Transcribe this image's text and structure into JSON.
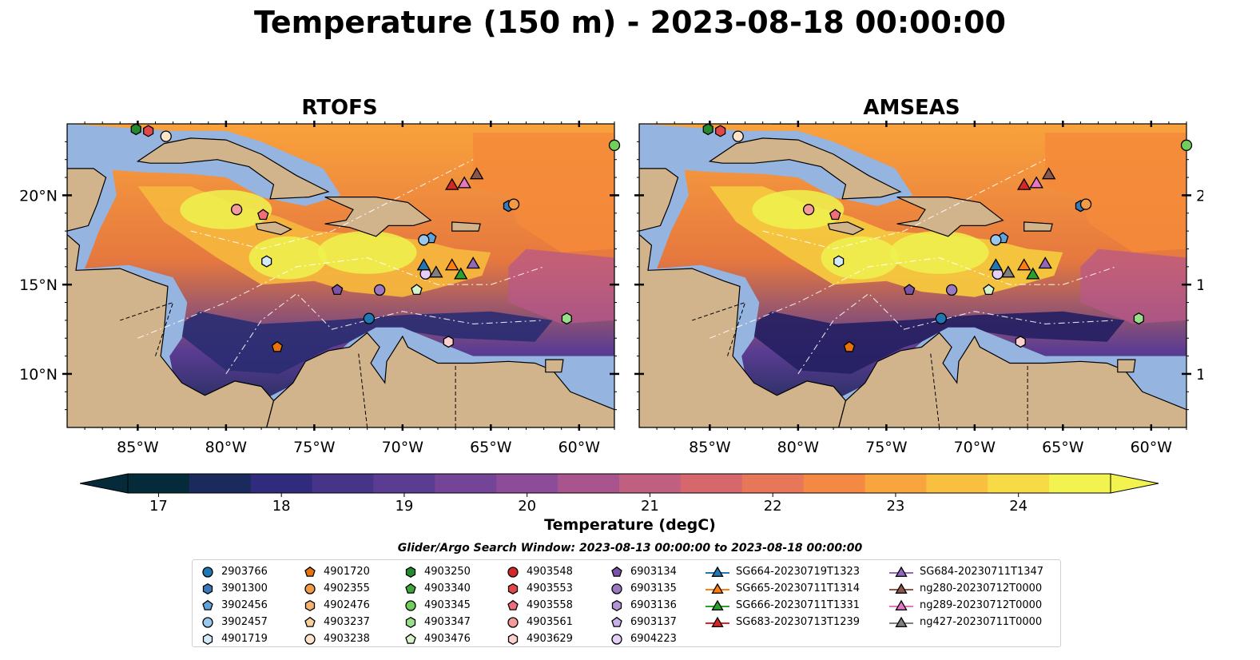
{
  "figure": {
    "title": "Temperature (150 m) - 2023-08-18 00:00:00"
  },
  "panels": [
    {
      "id": "rtofs",
      "title": "RTOFS"
    },
    {
      "id": "amseas",
      "title": "AMSEAS"
    }
  ],
  "map_axes": {
    "lon_ticks": [
      "85°W",
      "80°W",
      "75°W",
      "70°W",
      "65°W",
      "60°W"
    ],
    "lat_ticks": [
      "20°N",
      "15°N",
      "10°N"
    ],
    "lon_range": [
      -89,
      -58
    ],
    "lat_range": [
      7,
      24
    ]
  },
  "colorbar": {
    "label": "Temperature (degC)",
    "ticks": [
      "17",
      "18",
      "19",
      "20",
      "21",
      "22",
      "23",
      "24"
    ],
    "range": [
      16.75,
      24.75
    ],
    "levels": 16,
    "extend": "both",
    "colormap": "thermal",
    "stops": [
      "#052a3a",
      "#2d2a7a",
      "#553a92",
      "#83499a",
      "#b55a8a",
      "#de6c66",
      "#f78e3f",
      "#f9c43f",
      "#f3f34f"
    ]
  },
  "search_window": "Glider/Argo Search Window: 2023-08-13 00:00:00 to 2023-08-18 00:00:00",
  "legend": {
    "columns": [
      [
        {
          "label": "2903766",
          "marker": "circle",
          "color": "#1f77b4"
        },
        {
          "label": "3901300",
          "marker": "hexagon",
          "color": "#3a78b9"
        },
        {
          "label": "3902456",
          "marker": "pentagon",
          "color": "#5fa3db"
        },
        {
          "label": "3902457",
          "marker": "circle",
          "color": "#9ac8ec"
        },
        {
          "label": "4901719",
          "marker": "hexagon",
          "color": "#d3eaf8"
        }
      ],
      [
        {
          "label": "4901720",
          "marker": "pentagon",
          "color": "#e8720c"
        },
        {
          "label": "4902355",
          "marker": "circle",
          "color": "#f39a45"
        },
        {
          "label": "4902476",
          "marker": "hexagon",
          "color": "#f8b36e"
        },
        {
          "label": "4903237",
          "marker": "pentagon",
          "color": "#fbcf9c"
        },
        {
          "label": "4903238",
          "marker": "circle",
          "color": "#fde4c8"
        }
      ],
      [
        {
          "label": "4903250",
          "marker": "hexagon",
          "color": "#238b2d"
        },
        {
          "label": "4903340",
          "marker": "pentagon",
          "color": "#3fa83a"
        },
        {
          "label": "4903345",
          "marker": "circle",
          "color": "#6fcf5a"
        },
        {
          "label": "4903347",
          "marker": "hexagon",
          "color": "#98df8a"
        },
        {
          "label": "4903476",
          "marker": "pentagon",
          "color": "#d4f2cb"
        }
      ],
      [
        {
          "label": "4903548",
          "marker": "circle",
          "color": "#d62728"
        },
        {
          "label": "4903553",
          "marker": "hexagon",
          "color": "#e2484a"
        },
        {
          "label": "4903558",
          "marker": "pentagon",
          "color": "#ef6e7a"
        },
        {
          "label": "4903561",
          "marker": "circle",
          "color": "#f49a9a"
        },
        {
          "label": "4903629",
          "marker": "hexagon",
          "color": "#fbd0cd"
        }
      ],
      [
        {
          "label": "6903134",
          "marker": "pentagon",
          "color": "#7a52a8"
        },
        {
          "label": "6903135",
          "marker": "circle",
          "color": "#9a78c2"
        },
        {
          "label": "6903136",
          "marker": "hexagon",
          "color": "#b394d6"
        },
        {
          "label": "6903137",
          "marker": "pentagon",
          "color": "#c9b0ea"
        },
        {
          "label": "6904223",
          "marker": "circle",
          "color": "#e3cffa"
        }
      ],
      [
        {
          "label": "SG664-20230719T1323",
          "marker": "triangle",
          "color": "#1f77b4"
        },
        {
          "label": "SG665-20230711T1314",
          "marker": "triangle",
          "color": "#ff7f0e"
        },
        {
          "label": "SG666-20230711T1331",
          "marker": "triangle",
          "color": "#2ca02c"
        },
        {
          "label": "SG683-20230713T1239",
          "marker": "triangle",
          "color": "#d62728"
        }
      ],
      [
        {
          "label": "SG684-20230711T1347",
          "marker": "triangle",
          "color": "#9467bd"
        },
        {
          "label": "ng280-20230712T0000",
          "marker": "triangle",
          "color": "#8c564b"
        },
        {
          "label": "ng289-20230712T0000",
          "marker": "triangle",
          "color": "#e377c2"
        },
        {
          "label": "ng427-20230711T0000",
          "marker": "triangle",
          "color": "#7f7f7f"
        }
      ]
    ]
  },
  "observations": [
    {
      "id": "2903766",
      "lon": -71.9,
      "lat": 13.1
    },
    {
      "id": "3901300",
      "lon": -64.0,
      "lat": 19.4
    },
    {
      "id": "3902456",
      "lon": -68.4,
      "lat": 17.6
    },
    {
      "id": "3902457",
      "lon": -68.8,
      "lat": 17.5
    },
    {
      "id": "4901719",
      "lon": -77.7,
      "lat": 16.3
    },
    {
      "id": "4901720",
      "lon": -77.1,
      "lat": 11.5
    },
    {
      "id": "4902355",
      "lon": -63.7,
      "lat": 19.5
    },
    {
      "id": "4903238",
      "lon": -83.4,
      "lat": 23.3
    },
    {
      "id": "4903250",
      "lon": -85.1,
      "lat": 23.7
    },
    {
      "id": "4903345",
      "lon": -58.0,
      "lat": 22.8
    },
    {
      "id": "4903347",
      "lon": -60.7,
      "lat": 13.1
    },
    {
      "id": "4903476",
      "lon": -69.2,
      "lat": 14.7
    },
    {
      "id": "4903553",
      "lon": -84.4,
      "lat": 23.6
    },
    {
      "id": "4903558",
      "lon": -77.9,
      "lat": 18.9
    },
    {
      "id": "4903561",
      "lon": -79.4,
      "lat": 19.2
    },
    {
      "id": "4903629",
      "lon": -67.4,
      "lat": 11.8
    },
    {
      "id": "6903134",
      "lon": -73.7,
      "lat": 14.7
    },
    {
      "id": "6903135",
      "lon": -71.3,
      "lat": 14.7
    },
    {
      "id": "6904223",
      "lon": -68.7,
      "lat": 15.6
    },
    {
      "id": "SG664-20230719T1323",
      "lon": -68.8,
      "lat": 16.1
    },
    {
      "id": "SG665-20230711T1314",
      "lon": -67.2,
      "lat": 16.1
    },
    {
      "id": "SG666-20230711T1331",
      "lon": -66.7,
      "lat": 15.6
    },
    {
      "id": "SG683-20230713T1239",
      "lon": -67.2,
      "lat": 20.6
    },
    {
      "id": "SG684-20230711T1347",
      "lon": -66.0,
      "lat": 16.2
    },
    {
      "id": "ng280-20230712T0000",
      "lon": -65.8,
      "lat": 21.2
    },
    {
      "id": "ng289-20230712T0000",
      "lon": -66.5,
      "lat": 20.7
    },
    {
      "id": "ng427-20230711T0000",
      "lon": -68.1,
      "lat": 15.7
    }
  ]
}
